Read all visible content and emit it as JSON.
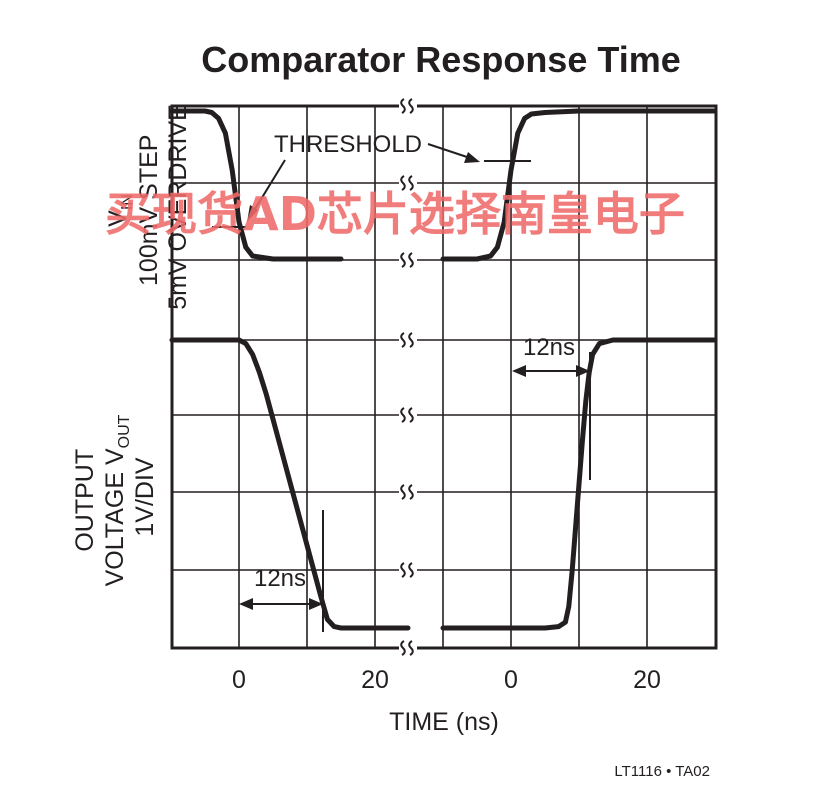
{
  "chart_data": {
    "type": "line",
    "title": "Comparator Response Time",
    "xlabel": "TIME (ns)",
    "x_ticks_left": [
      "0",
      "20"
    ],
    "x_ticks_right": [
      "0",
      "20"
    ],
    "xlim_left": [
      -10,
      30
    ],
    "xlim_right": [
      -10,
      30
    ],
    "top_panel": {
      "ylabel_lines": [
        "V",
        "100mV STEP",
        "5mV OVERDRIVE"
      ],
      "ylabel_subscript": "IN"
    },
    "bottom_panel": {
      "ylabel_lines": [
        "OUTPUT",
        "VOLTAGE V",
        "1V/DIV"
      ],
      "ylabel_subscript": "OUT"
    },
    "annotations": {
      "threshold": "THRESHOLD",
      "fall_delay": "12ns",
      "rise_delay": "12ns"
    },
    "grid": true,
    "series": [
      {
        "panel": "input",
        "segment": "left",
        "x": [
          -10,
          -5,
          -4,
          -3,
          -2,
          -1,
          0,
          1,
          2,
          5,
          10,
          15
        ],
        "y": [
          100,
          100,
          99,
          95,
          85,
          60,
          25,
          8,
          2,
          0,
          0,
          0
        ]
      },
      {
        "panel": "input",
        "segment": "right",
        "x": [
          -10,
          -5,
          -3,
          -2,
          -1,
          0,
          1,
          2,
          3,
          5,
          10,
          20,
          30
        ],
        "y": [
          0,
          0,
          2,
          8,
          25,
          60,
          85,
          95,
          98,
          99,
          100,
          100,
          100
        ]
      },
      {
        "panel": "output",
        "segment": "left",
        "x": [
          -10,
          0,
          1,
          2,
          3,
          4,
          5,
          6,
          7,
          8,
          9,
          10,
          11,
          12,
          13,
          14,
          15,
          20,
          30
        ],
        "y": [
          4.0,
          4.0,
          3.95,
          3.8,
          3.55,
          3.25,
          2.9,
          2.55,
          2.2,
          1.85,
          1.5,
          1.15,
          0.8,
          0.45,
          0.12,
          0.02,
          0.0,
          0.0,
          0.0
        ]
      },
      {
        "panel": "output",
        "segment": "right",
        "x": [
          -10,
          0,
          5,
          7,
          8,
          8.5,
          9,
          9.5,
          10,
          10.5,
          11,
          11.5,
          12,
          13,
          15,
          20,
          30
        ],
        "y": [
          0,
          0,
          0,
          0.02,
          0.08,
          0.3,
          0.8,
          1.4,
          2.0,
          2.6,
          3.15,
          3.55,
          3.8,
          3.95,
          4.0,
          4.0,
          4.0
        ]
      }
    ]
  },
  "footer_note": "LT1116 • TA02",
  "watermark": "买现货AD芯片选择南皇电子",
  "colors": {
    "ink": "#231f20",
    "watermark": "#f06a6a",
    "background": "#ffffff"
  }
}
